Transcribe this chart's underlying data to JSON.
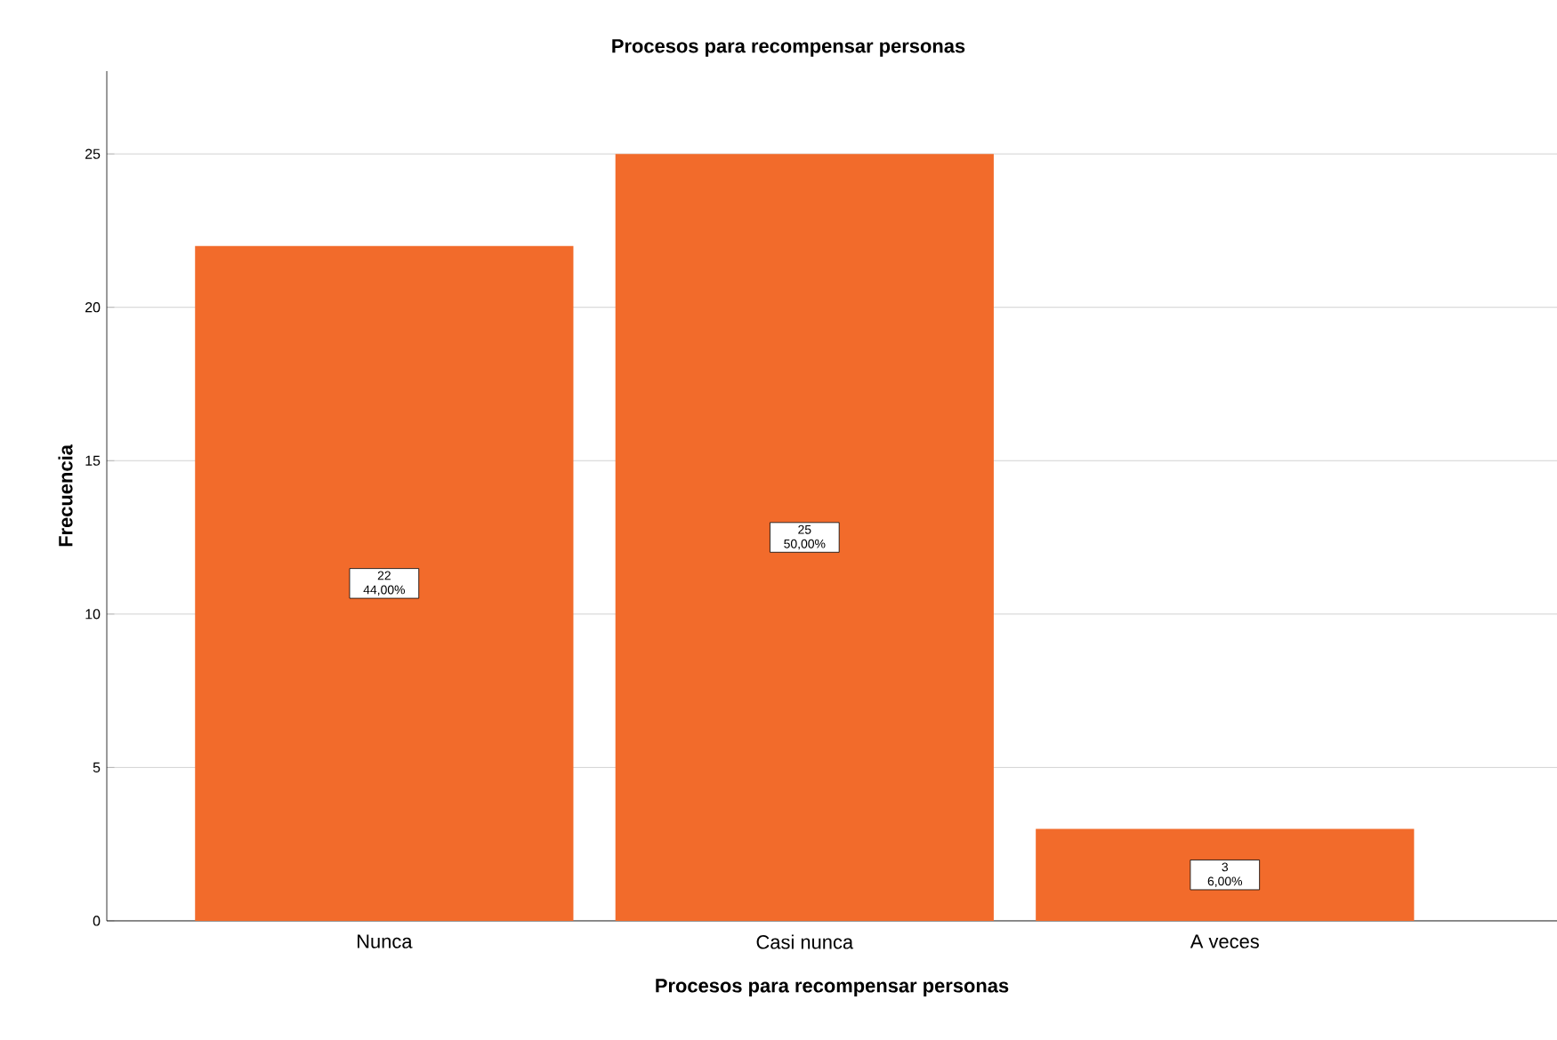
{
  "chart_data": {
    "type": "bar",
    "title": "Procesos para recompensar personas",
    "xlabel": "Procesos para recompensar personas",
    "ylabel": "Frecuencia",
    "categories": [
      "Nunca",
      "Casi nunca",
      "A veces"
    ],
    "values": [
      22,
      25,
      3
    ],
    "value_labels": [
      "22 44,00%",
      "25 50,00%",
      "3 6,00%"
    ],
    "color": "#f26b2b",
    "ylim": [
      0,
      27.7
    ],
    "yticks": [
      0,
      5,
      10,
      15,
      20,
      25
    ],
    "grid": "y"
  }
}
